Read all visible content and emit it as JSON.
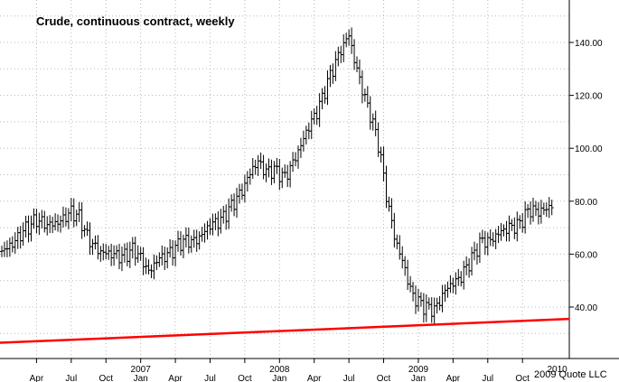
{
  "chart_data": {
    "type": "ohlc-bar",
    "title": "Crude, continuous contract, weekly",
    "credit": "2009 Quote LLC",
    "xlabel": "",
    "ylabel": "",
    "ylim": [
      25,
      155
    ],
    "yticks": [
      "140.00",
      "120.00",
      "100.00",
      "80.00",
      "60.00",
      "40.00"
    ],
    "ytick_values": [
      140,
      120,
      100,
      80,
      60,
      40
    ],
    "x_range": [
      2006.0,
      2009.97
    ],
    "x_month_ticks": [
      {
        "label": "Apr",
        "t": 2006.25
      },
      {
        "label": "Jul",
        "t": 2006.5
      },
      {
        "label": "Oct",
        "t": 2006.75
      },
      {
        "label": "Jan",
        "t": 2007.0
      },
      {
        "label": "Apr",
        "t": 2007.25
      },
      {
        "label": "Jul",
        "t": 2007.5
      },
      {
        "label": "Oct",
        "t": 2007.75
      },
      {
        "label": "Jan",
        "t": 2008.0
      },
      {
        "label": "Apr",
        "t": 2008.25
      },
      {
        "label": "Jul",
        "t": 2008.5
      },
      {
        "label": "Oct",
        "t": 2008.75
      },
      {
        "label": "Jan",
        "t": 2009.0
      },
      {
        "label": "Apr",
        "t": 2009.25
      },
      {
        "label": "Jul",
        "t": 2009.5
      },
      {
        "label": "Oct",
        "t": 2009.75
      }
    ],
    "x_year_labels": [
      {
        "label": "2007",
        "t": 2007.0
      },
      {
        "label": "2008",
        "t": 2008.0
      },
      {
        "label": "2009",
        "t": 2009.0
      },
      {
        "label": "2010",
        "t": 2010.0
      }
    ],
    "grid": true,
    "trendline": {
      "color": "#ff0000",
      "start": {
        "t": 2006.0,
        "y": 26.5
      },
      "end": {
        "t": 2009.97,
        "y": 35.5
      }
    },
    "price_path": [
      [
        2006.0,
        61
      ],
      [
        2006.08,
        64
      ],
      [
        2006.16,
        69
      ],
      [
        2006.25,
        73
      ],
      [
        2006.33,
        71
      ],
      [
        2006.41,
        72
      ],
      [
        2006.5,
        76
      ],
      [
        2006.56,
        74
      ],
      [
        2006.62,
        66
      ],
      [
        2006.7,
        61
      ],
      [
        2006.79,
        60
      ],
      [
        2006.87,
        59
      ],
      [
        2006.95,
        62
      ],
      [
        2007.02,
        57
      ],
      [
        2007.06,
        53
      ],
      [
        2007.12,
        58
      ],
      [
        2007.2,
        60
      ],
      [
        2007.3,
        65
      ],
      [
        2007.4,
        65
      ],
      [
        2007.5,
        71
      ],
      [
        2007.58,
        73
      ],
      [
        2007.65,
        78
      ],
      [
        2007.73,
        84
      ],
      [
        2007.8,
        92
      ],
      [
        2007.85,
        95
      ],
      [
        2007.9,
        91
      ],
      [
        2007.96,
        92
      ],
      [
        2008.04,
        89
      ],
      [
        2008.12,
        97
      ],
      [
        2008.2,
        107
      ],
      [
        2008.28,
        115
      ],
      [
        2008.36,
        127
      ],
      [
        2008.44,
        137
      ],
      [
        2008.5,
        143
      ],
      [
        2008.54,
        133
      ],
      [
        2008.62,
        118
      ],
      [
        2008.66,
        112
      ],
      [
        2008.72,
        100
      ],
      [
        2008.77,
        82
      ],
      [
        2008.83,
        66
      ],
      [
        2008.9,
        55
      ],
      [
        2008.95,
        45
      ],
      [
        2009.0,
        42
      ],
      [
        2009.05,
        40
      ],
      [
        2009.12,
        39
      ],
      [
        2009.2,
        47
      ],
      [
        2009.3,
        51
      ],
      [
        2009.38,
        58
      ],
      [
        2009.45,
        65
      ],
      [
        2009.52,
        65
      ],
      [
        2009.58,
        68
      ],
      [
        2009.65,
        70
      ],
      [
        2009.72,
        71
      ],
      [
        2009.8,
        77
      ],
      [
        2009.86,
        76
      ],
      [
        2009.92,
        77
      ],
      [
        2009.97,
        79
      ]
    ],
    "bar_spread": 3.2
  }
}
